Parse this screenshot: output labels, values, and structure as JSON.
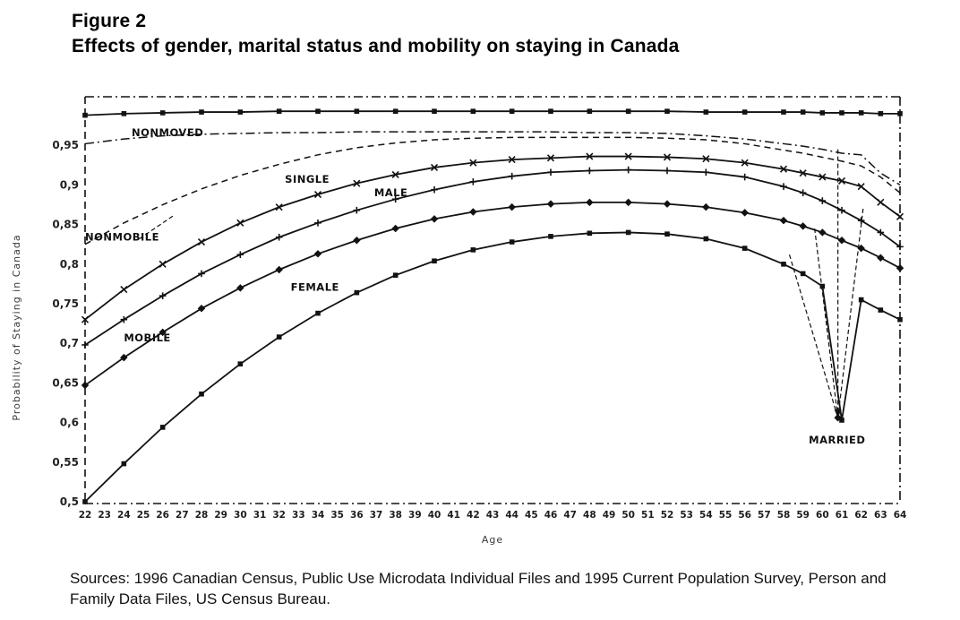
{
  "figure": {
    "label": "Figure 2",
    "title": "Effects of gender, marital status and mobility on staying in Canada"
  },
  "sources": "Sources: 1996 Canadian Census, Public Use Microdata Individual Files and 1995 Current Population Survey, Person and Family Data Files, US Census Bureau.",
  "chart_data": {
    "type": "line",
    "title": "",
    "xlabel": "Age",
    "ylabel": "Probability of Staying in Canada",
    "x_range": [
      22,
      64
    ],
    "y_range": [
      0.5,
      1.0
    ],
    "grid": "off",
    "legend_position": "none (labels annotated on curves)",
    "x_tick_labels": [
      "22",
      "23",
      "24",
      "25",
      "26",
      "27",
      "28",
      "29",
      "30",
      "31",
      "32",
      "33",
      "34",
      "35",
      "36",
      "37",
      "38",
      "39",
      "40",
      "41",
      "42",
      "43",
      "44",
      "45",
      "46",
      "47",
      "48",
      "49",
      "50",
      "51",
      "52",
      "53",
      "54",
      "55",
      "56",
      "57",
      "58",
      "59",
      "60",
      "61",
      "62",
      "63",
      "64"
    ],
    "y_ticks": {
      "labels": [
        "0,95",
        "0,9",
        "0,85",
        "0,8",
        "0,75",
        "0,7",
        "0,65",
        "0,6",
        "0,55",
        "0,5"
      ],
      "values": [
        0.95,
        0.9,
        0.85,
        0.8,
        0.75,
        0.7,
        0.65,
        0.6,
        0.55,
        0.5
      ]
    },
    "anchor_ages": [
      22,
      24,
      26,
      28,
      30,
      32,
      34,
      36,
      38,
      40,
      42,
      44,
      46,
      48,
      50,
      52,
      54,
      56,
      58,
      59,
      60,
      61,
      62,
      63,
      64
    ],
    "series": [
      {
        "name": "NONMOVED",
        "marker": "square",
        "dash": "none",
        "values": [
          0.988,
          0.99,
          0.991,
          0.992,
          0.992,
          0.993,
          0.993,
          0.993,
          0.993,
          0.993,
          0.993,
          0.993,
          0.993,
          0.993,
          0.993,
          0.993,
          0.992,
          0.992,
          0.992,
          0.992,
          0.991,
          0.991,
          0.991,
          0.99,
          0.99
        ]
      },
      {
        "name": "SINGLE",
        "marker": "none",
        "dash": "dashdot",
        "values": [
          0.952,
          0.958,
          0.962,
          0.964,
          0.965,
          0.966,
          0.966,
          0.967,
          0.967,
          0.967,
          0.967,
          0.967,
          0.967,
          0.966,
          0.966,
          0.965,
          0.962,
          0.958,
          0.952,
          0.949,
          0.945,
          0.94,
          0.938,
          0.915,
          0.9
        ]
      },
      {
        "name": "NONMOBILE",
        "marker": "none",
        "dash": "dash",
        "values": [
          0.825,
          0.852,
          0.875,
          0.895,
          0.912,
          0.926,
          0.938,
          0.947,
          0.953,
          0.957,
          0.959,
          0.96,
          0.96,
          0.96,
          0.96,
          0.959,
          0.957,
          0.952,
          0.944,
          0.94,
          0.935,
          0.93,
          0.924,
          0.91,
          0.89
        ]
      },
      {
        "name": "MALE",
        "marker": "x",
        "dash": "none",
        "values": [
          0.73,
          0.768,
          0.8,
          0.828,
          0.852,
          0.872,
          0.888,
          0.902,
          0.913,
          0.922,
          0.928,
          0.932,
          0.934,
          0.936,
          0.936,
          0.935,
          0.933,
          0.928,
          0.92,
          0.915,
          0.91,
          0.905,
          0.898,
          0.878,
          0.86
        ]
      },
      {
        "name": "FEMALE",
        "marker": "plus",
        "dash": "none",
        "values": [
          0.698,
          0.73,
          0.76,
          0.788,
          0.812,
          0.834,
          0.852,
          0.868,
          0.882,
          0.894,
          0.904,
          0.911,
          0.916,
          0.918,
          0.919,
          0.918,
          0.916,
          0.91,
          0.898,
          0.89,
          0.88,
          0.868,
          0.855,
          0.84,
          0.822
        ]
      },
      {
        "name": "MOBILE",
        "marker": "diamond",
        "dash": "none",
        "values": [
          0.647,
          0.682,
          0.714,
          0.744,
          0.77,
          0.793,
          0.813,
          0.83,
          0.845,
          0.857,
          0.866,
          0.872,
          0.876,
          0.878,
          0.878,
          0.876,
          0.872,
          0.865,
          0.855,
          0.848,
          0.84,
          0.83,
          0.82,
          0.808,
          0.795
        ]
      },
      {
        "name": "MARRIED",
        "marker": "square",
        "dash": "none",
        "values": [
          0.5,
          0.548,
          0.594,
          0.636,
          0.674,
          0.708,
          0.738,
          0.764,
          0.786,
          0.804,
          0.818,
          0.828,
          0.835,
          0.839,
          0.84,
          0.838,
          0.832,
          0.82,
          0.8,
          0.788,
          0.772,
          0.603,
          0.755,
          0.742,
          0.73
        ]
      }
    ],
    "labels": [
      {
        "text": "NONMOVED",
        "age": 24.4,
        "p": 0.966
      },
      {
        "text": "SINGLE",
        "age": 32.3,
        "p": 0.907
      },
      {
        "text": "MALE",
        "age": 36.9,
        "p": 0.89
      },
      {
        "text": "NONMOBILE",
        "age": 22.0,
        "p": 0.834
      },
      {
        "text": "FEMALE",
        "age": 32.6,
        "p": 0.771
      },
      {
        "text": "MOBILE",
        "age": 24.0,
        "p": 0.707
      },
      {
        "text": "MARRIED",
        "age": 59.3,
        "p": 0.578
      }
    ],
    "leader_lines": [
      {
        "x1": 58.3,
        "p1": 0.812,
        "x2": 60.8,
        "p2": 0.606
      },
      {
        "x1": 59.6,
        "p1": 0.845,
        "x2": 60.8,
        "p2": 0.606
      },
      {
        "x1": 60.8,
        "p1": 0.945,
        "x2": 60.8,
        "p2": 0.606
      },
      {
        "x1": 62.1,
        "p1": 0.87,
        "x2": 60.8,
        "p2": 0.606
      },
      {
        "x1": 24.8,
        "p1": 0.832,
        "x2": 26.6,
        "p2": 0.862
      }
    ]
  }
}
